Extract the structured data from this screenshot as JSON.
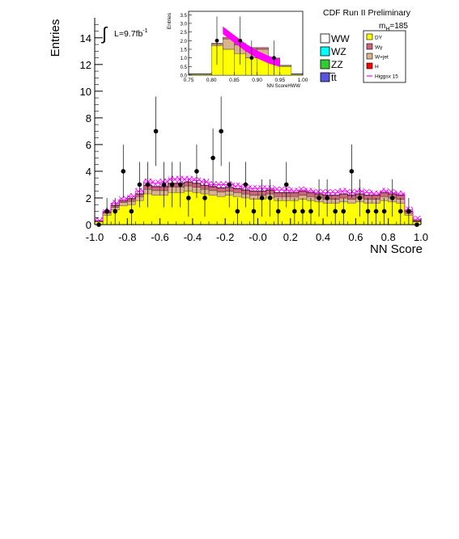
{
  "chart_data": {
    "type": "bar",
    "header": "CDF Run II Preliminary",
    "mass_label_main": "m",
    "mass_label_sub": "H",
    "mass_label_value": "=185",
    "lumi_label_prefix": "L=9.7fb",
    "lumi_label_exp": "-1",
    "integral_symbol": "∫",
    "xlabel": "NN Score",
    "ylabel": "Entries",
    "xlim": [
      -1.0,
      1.0
    ],
    "ylim": [
      0,
      15.5
    ],
    "xticks": [
      "-1.0",
      "-0.8",
      "-0.6",
      "-0.4",
      "-0.2",
      "-0.0",
      "0.2",
      "0.4",
      "0.6",
      "0.8",
      "1.0"
    ],
    "yticks": [
      "0",
      "2",
      "4",
      "6",
      "8",
      "10",
      "12",
      "14"
    ],
    "bin_edges_start": -1.0,
    "bin_width": 0.05,
    "stack": [
      {
        "name": "DY",
        "color": "#ffff00",
        "values": [
          0.2,
          0.7,
          1.1,
          1.4,
          1.5,
          1.8,
          2.3,
          2.2,
          2.2,
          2.4,
          2.4,
          2.5,
          2.4,
          2.3,
          2.2,
          2.1,
          2.2,
          2.1,
          2.0,
          1.9,
          1.9,
          2.0,
          1.8,
          1.8,
          1.8,
          1.9,
          1.8,
          1.7,
          1.6,
          1.6,
          1.7,
          1.6,
          1.7,
          1.6,
          1.6,
          1.8,
          1.7,
          1.6,
          0.7,
          0.2
        ]
      },
      {
        "name": "W+jet",
        "color": "#d9b38c",
        "values": [
          0.05,
          0.15,
          0.2,
          0.25,
          0.25,
          0.3,
          0.35,
          0.35,
          0.35,
          0.4,
          0.4,
          0.4,
          0.4,
          0.35,
          0.35,
          0.35,
          0.3,
          0.3,
          0.3,
          0.3,
          0.3,
          0.3,
          0.3,
          0.3,
          0.3,
          0.3,
          0.3,
          0.3,
          0.3,
          0.3,
          0.3,
          0.3,
          0.3,
          0.3,
          0.3,
          0.3,
          0.3,
          0.3,
          0.15,
          0.05
        ]
      },
      {
        "name": "Wγ",
        "color": "#cc6677",
        "values": [
          0.02,
          0.1,
          0.15,
          0.15,
          0.2,
          0.2,
          0.3,
          0.3,
          0.3,
          0.3,
          0.3,
          0.3,
          0.3,
          0.3,
          0.3,
          0.3,
          0.3,
          0.3,
          0.3,
          0.3,
          0.3,
          0.3,
          0.3,
          0.3,
          0.3,
          0.3,
          0.3,
          0.3,
          0.3,
          0.3,
          0.3,
          0.3,
          0.3,
          0.3,
          0.3,
          0.3,
          0.3,
          0.3,
          0.15,
          0.05
        ]
      }
    ],
    "signal": {
      "name": "Higgsx 15",
      "color": "#ff00ff",
      "values": [
        0.3,
        1.0,
        1.6,
        1.9,
        2.1,
        2.5,
        3.2,
        3.1,
        3.2,
        3.4,
        3.4,
        3.4,
        3.3,
        3.2,
        3.0,
        3.0,
        3.0,
        2.9,
        2.8,
        2.7,
        2.7,
        2.7,
        2.6,
        2.6,
        2.5,
        2.6,
        2.5,
        2.4,
        2.4,
        2.4,
        2.5,
        2.4,
        2.5,
        2.4,
        2.3,
        2.5,
        2.4,
        2.3,
        1.1,
        0.4
      ]
    },
    "data_points": {
      "x": [
        -0.975,
        -0.925,
        -0.875,
        -0.825,
        -0.775,
        -0.725,
        -0.675,
        -0.625,
        -0.575,
        -0.525,
        -0.475,
        -0.425,
        -0.375,
        -0.325,
        -0.275,
        -0.225,
        -0.175,
        -0.125,
        -0.075,
        -0.025,
        0.025,
        0.075,
        0.125,
        0.175,
        0.225,
        0.275,
        0.325,
        0.375,
        0.425,
        0.475,
        0.525,
        0.575,
        0.625,
        0.675,
        0.725,
        0.775,
        0.825,
        0.875,
        0.925,
        0.975
      ],
      "y": [
        0,
        1,
        1,
        4,
        1,
        3,
        3,
        7,
        3,
        3,
        3,
        2,
        4,
        2,
        5,
        7,
        3,
        1,
        3,
        1,
        2,
        2,
        1,
        3,
        1,
        1,
        1,
        2,
        2,
        1,
        1,
        4,
        2,
        1,
        1,
        1,
        2,
        1,
        1,
        0
      ],
      "err": [
        0,
        1.0,
        1.0,
        2.0,
        1.0,
        1.7,
        1.7,
        2.6,
        1.7,
        1.7,
        1.7,
        1.4,
        2.0,
        1.4,
        2.2,
        2.6,
        1.7,
        1.0,
        1.7,
        1.0,
        1.4,
        1.4,
        1.0,
        1.7,
        1.0,
        1.0,
        1.0,
        1.4,
        1.4,
        1.0,
        1.0,
        2.0,
        1.4,
        1.0,
        1.0,
        1.0,
        1.4,
        1.0,
        1.0,
        0
      ]
    },
    "legend": {
      "placement": "top-right",
      "left_column": [
        {
          "label": "WW",
          "color": "#ffffff"
        },
        {
          "label": "WZ",
          "color": "#00ffff"
        },
        {
          "label": "ZZ",
          "color": "#33cc33"
        },
        {
          "label": "t̅t",
          "color": "#5555dd"
        }
      ],
      "right_column": [
        {
          "label": "DY",
          "color": "#ffff00"
        },
        {
          "label": "Wγ",
          "color": "#cc6677"
        },
        {
          "label": "W+jet",
          "color": "#d9b38c"
        },
        {
          "label": "H",
          "color": "#ff0000"
        },
        {
          "label": "Higgsx 15",
          "color": "#ff00ff"
        }
      ]
    },
    "inset": {
      "type": "bar",
      "xlabel": "NN ScoreHWW",
      "ylabel": "Entries",
      "xlim": [
        0.75,
        1.0
      ],
      "ylim": [
        0,
        3.7
      ],
      "xticks": [
        "0.75",
        "0.80",
        "0.85",
        "0.90",
        "0.95",
        "1.00"
      ],
      "yticks": [
        "0.0",
        "0.5",
        "1.0",
        "1.5",
        "2.0",
        "2.5",
        "3.0",
        "3.5"
      ],
      "bin_edges": [
        0.75,
        0.8,
        0.825,
        0.85,
        0.875,
        0.9,
        0.925,
        0.95,
        0.975,
        1.0
      ],
      "stack": [
        {
          "name": "DY",
          "color": "#ffff00",
          "values": [
            0.05,
            1.7,
            1.5,
            1.25,
            1.0,
            1.0,
            0.85,
            0.5,
            0.05
          ]
        },
        {
          "name": "W+jet",
          "color": "#d9b38c",
          "values": [
            0.02,
            0.1,
            0.6,
            0.5,
            0.5,
            0.5,
            0.1,
            0.05,
            0.02
          ]
        },
        {
          "name": "Wγ",
          "color": "#cc6677",
          "values": [
            0.01,
            0.05,
            0.1,
            0.1,
            0.1,
            0.1,
            0.05,
            0.03,
            0.01
          ]
        }
      ],
      "signal_band": {
        "name": "Higgsx 15",
        "color": "#ff00ff",
        "x": [
          0.825,
          0.85,
          0.875,
          0.9,
          0.925,
          0.95
        ],
        "y": [
          2.6,
          2.1,
          1.6,
          1.2,
          0.9,
          0.7
        ],
        "halfwidth": 0.22
      },
      "data_points": {
        "x": [
          0.812,
          0.863,
          0.888,
          0.937
        ],
        "y": [
          2.0,
          2.0,
          1.0,
          1.0
        ],
        "err": [
          1.4,
          1.4,
          1.0,
          1.0
        ]
      }
    }
  }
}
